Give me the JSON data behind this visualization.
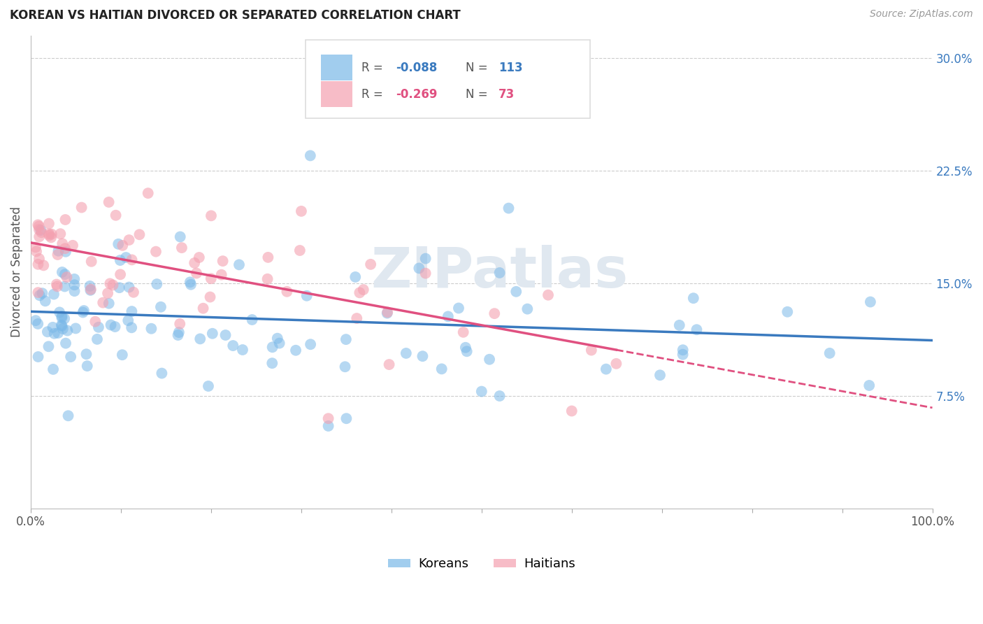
{
  "title": "KOREAN VS HAITIAN DIVORCED OR SEPARATED CORRELATION CHART",
  "source": "Source: ZipAtlas.com",
  "ylabel": "Divorced or Separated",
  "xlim": [
    0,
    1.0
  ],
  "ylim": [
    0,
    0.315
  ],
  "korean_color": "#7ab8e8",
  "haitian_color": "#f4a0b0",
  "korean_line_color": "#3a7abf",
  "haitian_line_color": "#e05080",
  "korean_R": -0.088,
  "korean_N": 113,
  "haitian_R": -0.269,
  "haitian_N": 73,
  "watermark": "ZIPatlas",
  "background_color": "#ffffff",
  "grid_color": "#cccccc",
  "label_color_blue": "#3a7abf",
  "label_color_red": "#e05080",
  "ytick_color": "#3a7abf",
  "seed": 12345
}
